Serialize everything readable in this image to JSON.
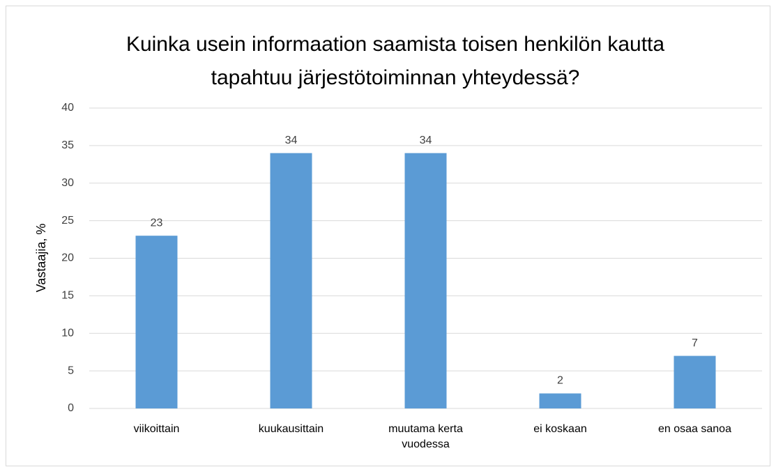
{
  "chart_data": {
    "type": "bar",
    "title": "Kuinka usein informaation saamista toisen henkilön kautta tapahtuu järjestötoiminnan yhteydessä?",
    "y_label": "Vastaajia, %",
    "categories": [
      "viikoittain",
      "kuukausittain",
      "muutama kerta vuodessa",
      "ei koskaan",
      "en osaa sanoa"
    ],
    "values": [
      23,
      34,
      34,
      2,
      7
    ],
    "color": "#5b9bd5",
    "ylim": [
      0,
      40
    ],
    "yticks": [
      0,
      5,
      10,
      15,
      20,
      25,
      30,
      35,
      40
    ],
    "grid": true
  }
}
